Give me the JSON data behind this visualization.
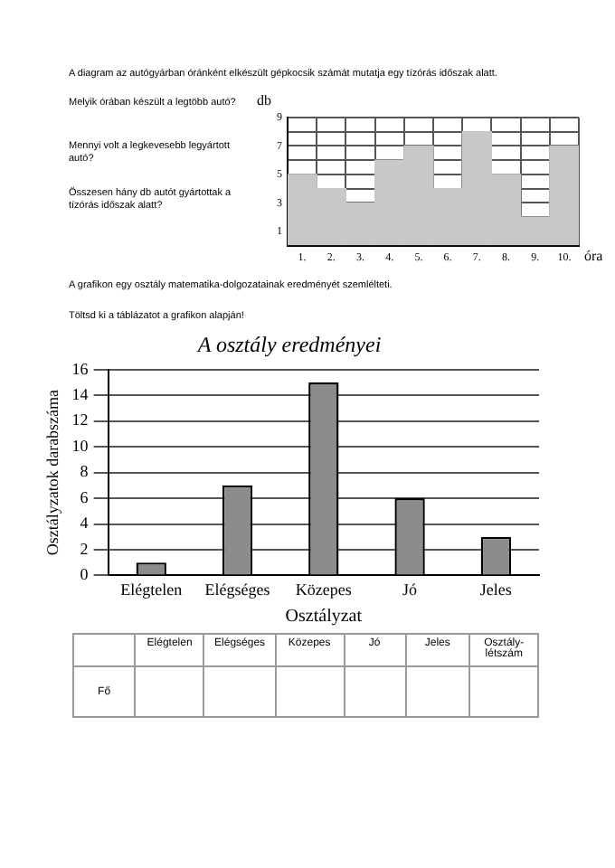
{
  "chart_data": [
    {
      "type": "bar",
      "xlabel": "óra",
      "ylabel": "db",
      "categories": [
        "1.",
        "2.",
        "3.",
        "4.",
        "5.",
        "6.",
        "7.",
        "8.",
        "9.",
        "10."
      ],
      "values": [
        5,
        4,
        3,
        6,
        7,
        4,
        8,
        5,
        2,
        7
      ],
      "color": "#c8c8c8",
      "ylim": [
        0,
        9
      ],
      "yticks": [
        {
          "value": 0,
          "label": null
        },
        1,
        {
          "value": 2,
          "label": null
        },
        3,
        {
          "value": 4,
          "label": null
        },
        5,
        {
          "value": 6,
          "label": null
        },
        7,
        {
          "value": 8,
          "label": null
        },
        9
      ],
      "grid": true,
      "annotations": [
        "A diagram az autógyárban óránként elkészült gépkocsik számát mutatja egy tízórás időszak alatt.",
        "Melyik órában készült a legtöbb autó?",
        "Mennyi volt a legkevesebb legyártott autó?",
        "Összesen hány db autót gyártottak a tízórás időszak alatt?"
      ]
    },
    {
      "type": "bar",
      "title": "A osztály eredményei",
      "xlabel": "Osztályzat",
      "ylabel": "Osztályzatok darabszáma",
      "categories": [
        "Elégtelen",
        "Elégséges",
        "Közepes",
        "Jó",
        "Jeles"
      ],
      "values": [
        1,
        7,
        15,
        6,
        3
      ],
      "color": "#8c8c8c",
      "ylim": [
        0,
        16
      ],
      "yticks": [
        0,
        2,
        4,
        6,
        8,
        10,
        12,
        14,
        16
      ],
      "grid": "y",
      "annotations": [
        "A grafikon egy osztály matematika-dolgozatainak eredményét szemlélteti.",
        "Töltsd ki a táblázatot a grafikon alapján!"
      ]
    },
    {
      "type": "other",
      "categories": [
        "Elégtelen",
        "Elégséges",
        "Közepes",
        "Jó",
        "Jeles",
        "Osztály-létszám"
      ],
      "y_categories": [
        "Fő"
      ]
    }
  ]
}
